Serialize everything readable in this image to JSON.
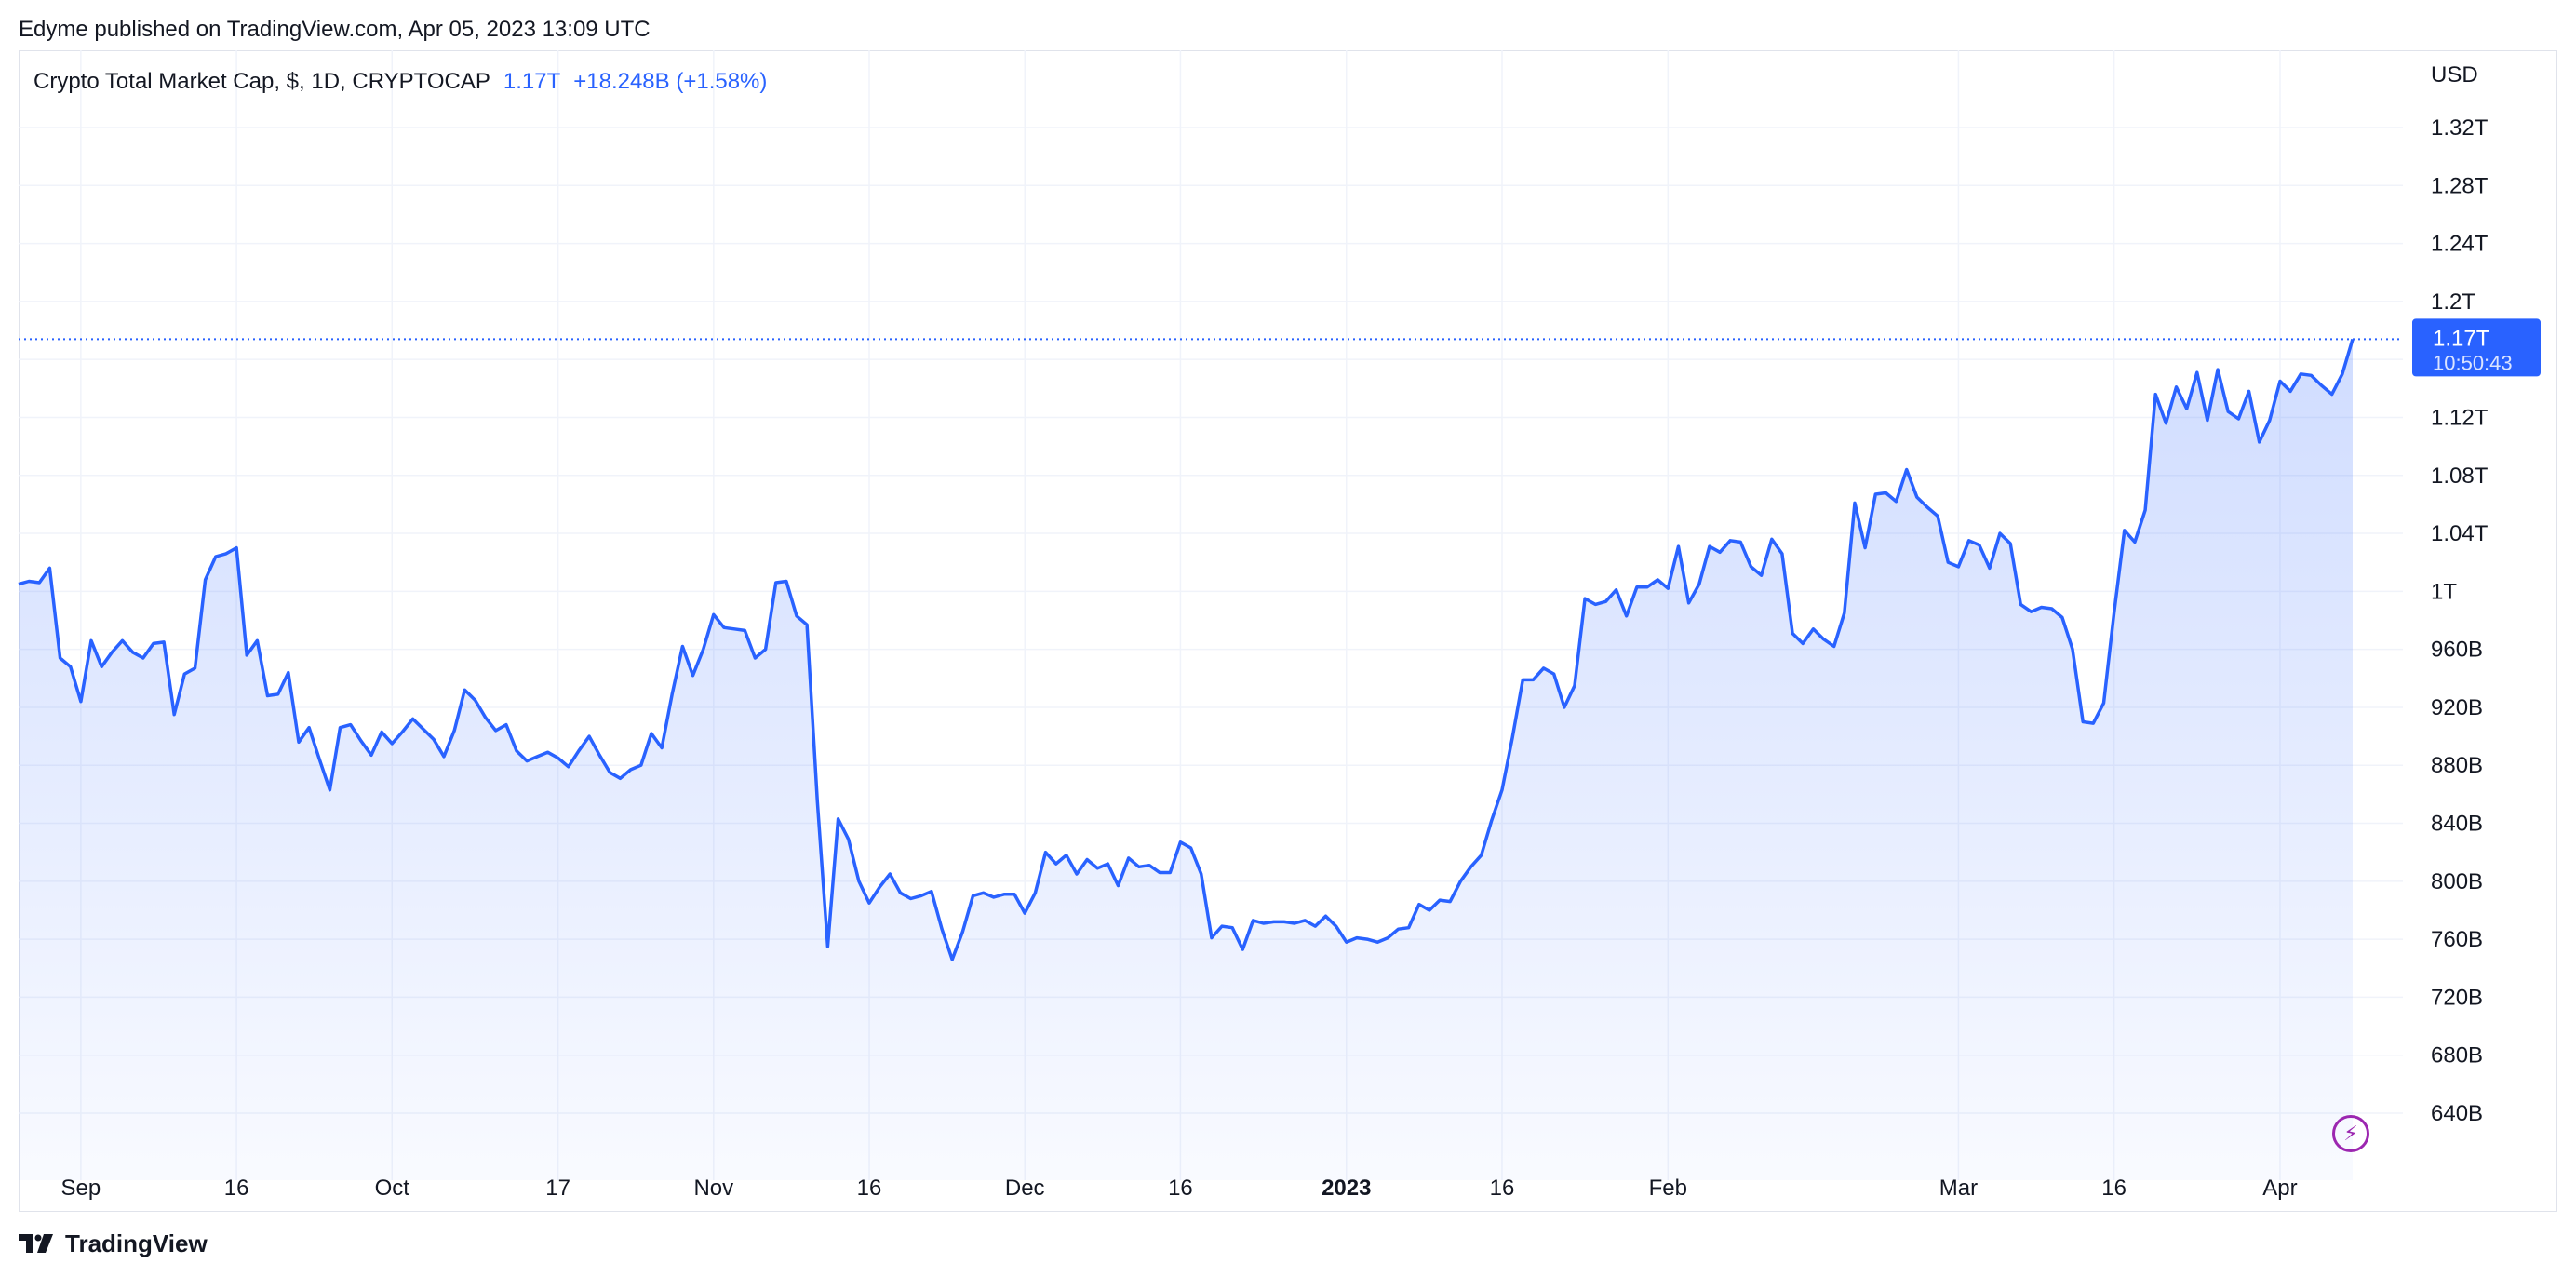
{
  "publish_line": "Edyme published on TradingView.com, Apr 05, 2023 13:09 UTC",
  "legend": {
    "symbol": "Crypto Total Market Cap, $, 1D, CRYPTOCAP",
    "last": "1.17T",
    "change": "+18.248B (+1.58%)"
  },
  "price_axis": {
    "currency": "USD",
    "ticks": [
      {
        "label": "1.32T",
        "value": 1320
      },
      {
        "label": "1.28T",
        "value": 1280
      },
      {
        "label": "1.24T",
        "value": 1240
      },
      {
        "label": "1.2T",
        "value": 1200
      },
      {
        "label": "1.12T",
        "value": 1120
      },
      {
        "label": "1.08T",
        "value": 1080
      },
      {
        "label": "1.04T",
        "value": 1040
      },
      {
        "label": "1T",
        "value": 1000
      },
      {
        "label": "960B",
        "value": 960
      },
      {
        "label": "920B",
        "value": 920
      },
      {
        "label": "880B",
        "value": 880
      },
      {
        "label": "840B",
        "value": 840
      },
      {
        "label": "800B",
        "value": 800
      },
      {
        "label": "760B",
        "value": 760
      },
      {
        "label": "720B",
        "value": 720
      },
      {
        "label": "680B",
        "value": 680
      },
      {
        "label": "640B",
        "value": 640
      }
    ]
  },
  "time_axis": {
    "ticks": [
      {
        "label": "Sep",
        "day": 6,
        "bold": false
      },
      {
        "label": "16",
        "day": 21,
        "bold": false
      },
      {
        "label": "Oct",
        "day": 36,
        "bold": false
      },
      {
        "label": "17",
        "day": 52,
        "bold": false
      },
      {
        "label": "Nov",
        "day": 67,
        "bold": false
      },
      {
        "label": "16",
        "day": 82,
        "bold": false
      },
      {
        "label": "Dec",
        "day": 97,
        "bold": false
      },
      {
        "label": "16",
        "day": 112,
        "bold": false
      },
      {
        "label": "2023",
        "day": 128,
        "bold": true
      },
      {
        "label": "16",
        "day": 143,
        "bold": false
      },
      {
        "label": "Feb",
        "day": 159,
        "bold": false
      },
      {
        "label": "Mar",
        "day": 187,
        "bold": false
      },
      {
        "label": "16",
        "day": 202,
        "bold": false
      },
      {
        "label": "Apr",
        "day": 218,
        "bold": false
      }
    ]
  },
  "price_label": {
    "value": "1.17T",
    "countdown": "10:50:43"
  },
  "brand": "TradingView",
  "colors": {
    "line": "#2962ff",
    "area_top": "#2962ff",
    "grid": "#f0f3fa",
    "text": "#131722",
    "price_label_bg": "#2962ff",
    "bolt": "#9c27b0"
  },
  "bolt_icon": "lightning-bolt-icon",
  "chart_data": {
    "type": "area",
    "title": "Crypto Total Market Cap, $, 1D, CRYPTOCAP",
    "x_unit": "day index (0 = Aug 26, 2022)",
    "ylabel": "USD",
    "ylim": [
      600,
      1345
    ],
    "grid": true,
    "last_value": 1174,
    "series": [
      {
        "values": [
          1005,
          1007,
          1006,
          1016,
          954,
          948,
          924,
          966,
          948,
          958,
          966,
          958,
          954,
          964,
          965,
          915,
          943,
          947,
          1008,
          1024,
          1026,
          1030,
          956,
          966,
          928,
          929,
          944,
          896,
          906,
          884,
          863,
          906,
          908,
          897,
          887,
          903,
          895,
          903,
          912,
          905,
          898,
          886,
          904,
          932,
          925,
          913,
          904,
          908,
          890,
          883,
          886,
          889,
          885,
          879,
          890,
          900,
          887,
          875,
          871,
          877,
          880,
          902,
          892,
          929,
          962,
          942,
          960,
          984,
          975,
          974,
          973,
          954,
          960,
          1006,
          1007,
          983,
          977,
          855,
          755,
          843,
          829,
          800,
          785,
          796,
          805,
          792,
          788,
          790,
          793,
          767,
          746,
          765,
          790,
          792,
          789,
          791,
          791,
          778,
          792,
          820,
          812,
          818,
          805,
          815,
          809,
          812,
          797,
          816,
          810,
          811,
          806,
          806,
          827,
          823,
          805,
          761,
          769,
          768,
          753,
          773,
          771,
          772,
          772,
          771,
          773,
          769,
          776,
          769,
          758,
          761,
          760,
          758,
          761,
          767,
          768,
          784,
          780,
          787,
          786,
          800,
          810,
          818,
          842,
          863,
          899,
          939,
          939,
          947,
          943,
          920,
          935,
          995,
          991,
          993,
          1001,
          983,
          1003,
          1003,
          1008,
          1002,
          1031,
          992,
          1005,
          1031,
          1027,
          1035,
          1034,
          1017,
          1011,
          1036,
          1026,
          971,
          964,
          974,
          967,
          962,
          985,
          1061,
          1030,
          1067,
          1068,
          1062,
          1084,
          1065,
          1058,
          1052,
          1020,
          1017,
          1035,
          1032,
          1016,
          1040,
          1033,
          991,
          986,
          989,
          988,
          982,
          960,
          910,
          909,
          923,
          985,
          1042,
          1034,
          1056,
          1136,
          1116,
          1141,
          1126,
          1151,
          1118,
          1153,
          1124,
          1119,
          1138,
          1103,
          1118,
          1145,
          1138,
          1150,
          1149,
          1142,
          1136,
          1150,
          1174
        ]
      }
    ]
  }
}
